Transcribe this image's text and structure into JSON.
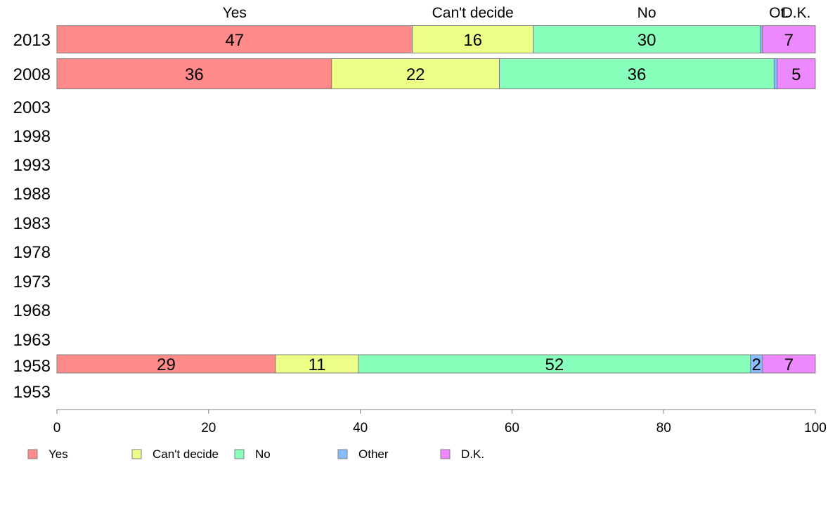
{
  "chart_data": {
    "type": "bar",
    "orientation": "horizontal",
    "stacked": true,
    "categories": [
      "2013",
      "2008",
      "2003",
      "1998",
      "1993",
      "1988",
      "1983",
      "1978",
      "1973",
      "1968",
      "1963",
      "1958",
      "1953"
    ],
    "series": [
      {
        "name": "Yes",
        "color": "#ff8a8a",
        "values": [
          47,
          36,
          null,
          null,
          null,
          null,
          null,
          null,
          null,
          null,
          null,
          29,
          null
        ],
        "labels": [
          "47",
          "36",
          "",
          "",
          "",
          "",
          "",
          "",
          "",
          "",
          "",
          "29",
          ""
        ]
      },
      {
        "name": "Can't decide",
        "color": "#eeff88",
        "values": [
          16,
          22,
          null,
          null,
          null,
          null,
          null,
          null,
          null,
          null,
          null,
          11,
          null
        ],
        "labels": [
          "16",
          "22",
          "",
          "",
          "",
          "",
          "",
          "",
          "",
          "",
          "",
          "11",
          ""
        ]
      },
      {
        "name": "No",
        "color": "#88ffbb",
        "values": [
          30,
          36,
          null,
          null,
          null,
          null,
          null,
          null,
          null,
          null,
          null,
          52,
          null
        ],
        "labels": [
          "30",
          "36",
          "",
          "",
          "",
          "",
          "",
          "",
          "",
          "",
          "",
          "52",
          ""
        ]
      },
      {
        "name": "Other",
        "color": "#88bbff",
        "values": [
          0.3,
          0.4,
          null,
          null,
          null,
          null,
          null,
          null,
          null,
          null,
          null,
          1.6,
          null
        ],
        "labels": [
          "",
          "",
          "",
          "",
          "",
          "",
          "",
          "",
          "",
          "",
          "",
          "2",
          ""
        ]
      },
      {
        "name": "D.K.",
        "color": "#ee88ff",
        "values": [
          7,
          5,
          null,
          null,
          null,
          null,
          null,
          null,
          null,
          null,
          null,
          7,
          null
        ],
        "labels": [
          "7",
          "5",
          "",
          "",
          "",
          "",
          "",
          "",
          "",
          "",
          "",
          "7",
          ""
        ]
      }
    ],
    "top_headers": [
      "Yes",
      "Can't decide",
      "No",
      "Ot.",
      "D.K."
    ],
    "xlim": [
      0,
      100
    ],
    "xticks": [
      "0",
      "20",
      "40",
      "60",
      "80",
      "100"
    ],
    "grid": false,
    "legend_position": "bottom",
    "legend": [
      "Yes",
      "Can't decide",
      "No",
      "Other",
      "D.K."
    ]
  }
}
